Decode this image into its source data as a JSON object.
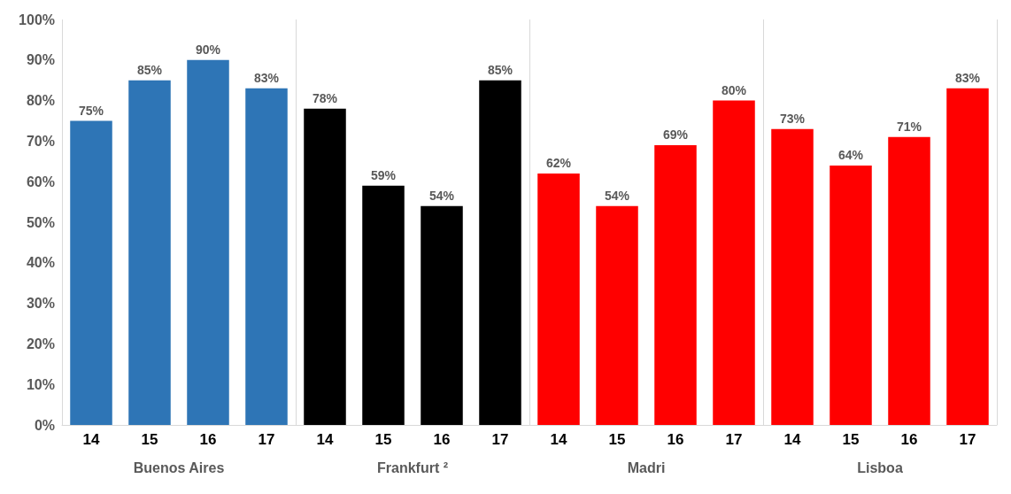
{
  "chart_data": {
    "type": "bar",
    "categories": [
      "Buenos Aires",
      "Frankfurt ²",
      "Madri",
      "Lisboa"
    ],
    "series": [
      {
        "name": "14",
        "values": [
          75,
          78,
          62,
          73
        ],
        "value_labels": [
          "75%",
          "78%",
          "62%",
          "73%"
        ],
        "colors": [
          "#2e75b6",
          "#000000",
          "#ff0000",
          "#ff0000"
        ]
      },
      {
        "name": "15",
        "values": [
          85,
          59,
          54,
          64
        ],
        "value_labels": [
          "85%",
          "59%",
          "54%",
          "64%"
        ],
        "colors": [
          "#2e75b6",
          "#000000",
          "#ff0000",
          "#ff0000"
        ]
      },
      {
        "name": "16",
        "values": [
          90,
          54,
          69,
          71
        ],
        "value_labels": [
          "90%",
          "54%",
          "69%",
          "71%"
        ],
        "colors": [
          "#2e75b6",
          "#000000",
          "#ff0000",
          "#ff0000"
        ]
      },
      {
        "name": "17",
        "values": [
          83,
          85,
          80,
          83
        ],
        "value_labels": [
          "83%",
          "85%",
          "80%",
          "83%"
        ],
        "colors": [
          "#2e75b6",
          "#000000",
          "#ff0000",
          "#ff0000"
        ]
      }
    ],
    "ylim": [
      0,
      100
    ],
    "yticks": [
      {
        "value": 0,
        "label": "0%"
      },
      {
        "value": 10,
        "label": "10%"
      },
      {
        "value": 20,
        "label": "20%"
      },
      {
        "value": 30,
        "label": "30%"
      },
      {
        "value": 40,
        "label": "40%"
      },
      {
        "value": 50,
        "label": "50%"
      },
      {
        "value": 60,
        "label": "60%"
      },
      {
        "value": 70,
        "label": "70%"
      },
      {
        "value": 80,
        "label": "80%"
      },
      {
        "value": 90,
        "label": "90%"
      },
      {
        "value": 100,
        "label": "100%"
      }
    ],
    "grid": "x",
    "legend": false
  }
}
